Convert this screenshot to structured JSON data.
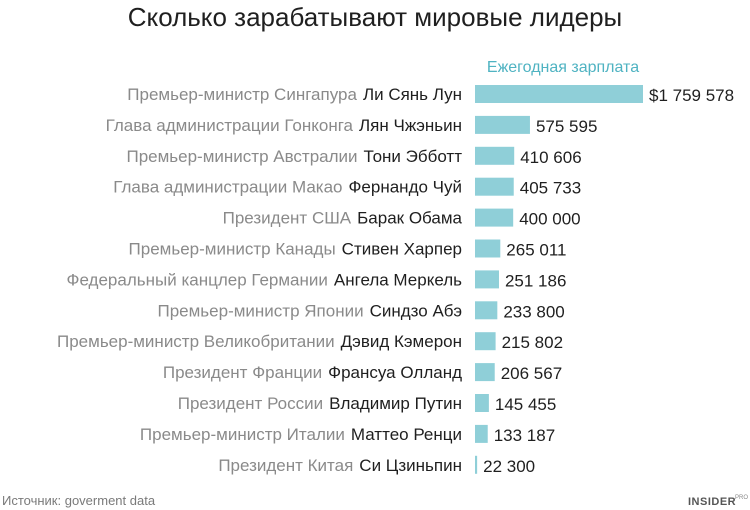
{
  "chart_data": {
    "type": "bar",
    "orientation": "horizontal",
    "title": "Сколько зарабатывают мировые лидеры",
    "column_header": "Ежегодная зарплата",
    "xlabel": "",
    "ylabel": "",
    "xlim": [
      0,
      1759578
    ],
    "grid": false,
    "legend": "none",
    "categories": [
      {
        "role": "Премьер-министр Сингапура",
        "person": "Ли Сянь Лун",
        "value": 1759578,
        "label": "$1 759 578"
      },
      {
        "role": "Глава администрации Гонконга",
        "person": "Лян Чжэньин",
        "value": 575595,
        "label": "575 595"
      },
      {
        "role": "Премьер-министр Австралии",
        "person": "Тони Эбботт",
        "value": 410606,
        "label": "410 606"
      },
      {
        "role": "Глава администрации Макао",
        "person": "Фернандо Чуй",
        "value": 405733,
        "label": "405 733"
      },
      {
        "role": "Президент США",
        "person": "Барак Обама",
        "value": 400000,
        "label": "400 000"
      },
      {
        "role": "Премьер-министр Канады",
        "person": "Стивен Харпер",
        "value": 265011,
        "label": "265 011"
      },
      {
        "role": "Федеральный канцлер Германии",
        "person": "Ангела Меркель",
        "value": 251186,
        "label": "251 186"
      },
      {
        "role": "Премьер-министр Японии",
        "person": "Синдзо Абэ",
        "value": 233800,
        "label": "233 800"
      },
      {
        "role": "Премьер-министр Великобритании",
        "person": "Дэвид Кэмерон",
        "value": 215802,
        "label": "215 802"
      },
      {
        "role": "Президент Франции",
        "person": "Франсуа Олланд",
        "value": 206567,
        "label": "206 567"
      },
      {
        "role": "Президент России",
        "person": "Владимир Путин",
        "value": 145455,
        "label": "145 455"
      },
      {
        "role": "Премьер-министр Италии",
        "person": "Маттео Ренци",
        "value": 133187,
        "label": "133 187"
      },
      {
        "role": "Президент Китая",
        "person": "Си Цзиньпин",
        "value": 22300,
        "label": "22 300"
      }
    ]
  },
  "footer": {
    "source": "Источник: goverment data",
    "brand": "INSIDER",
    "brand_sup": "PRO"
  },
  "colors": {
    "bar": "#8fcfd8",
    "header": "#4fb3c2",
    "role_text": "#8a8a8a",
    "person_text": "#1f1f1f"
  }
}
